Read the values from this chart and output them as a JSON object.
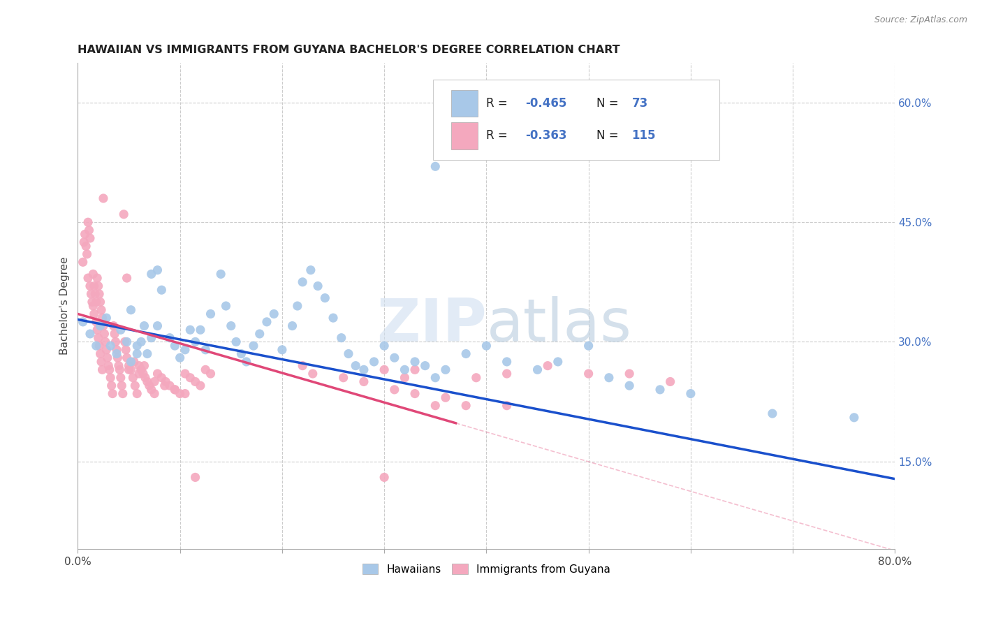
{
  "title": "HAWAIIAN VS IMMIGRANTS FROM GUYANA BACHELOR'S DEGREE CORRELATION CHART",
  "source": "Source: ZipAtlas.com",
  "ylabel_text": "Bachelor's Degree",
  "xmin": 0.0,
  "xmax": 0.8,
  "ymin": 0.04,
  "ymax": 0.65,
  "xticks": [
    0.0,
    0.1,
    0.2,
    0.3,
    0.4,
    0.5,
    0.6,
    0.7,
    0.8
  ],
  "xticklabels": [
    "0.0%",
    "",
    "",
    "",
    "",
    "",
    "",
    "",
    "80.0%"
  ],
  "yticks_right": [
    0.15,
    0.3,
    0.45,
    0.6
  ],
  "ytick_labels_right": [
    "15.0%",
    "30.0%",
    "45.0%",
    "60.0%"
  ],
  "hawaiian_color": "#a8c8e8",
  "guyana_color": "#f4a8be",
  "hawaiian_line_color": "#1a50cc",
  "guyana_line_color": "#e04878",
  "watermark_zip": "ZIP",
  "watermark_atlas": "atlas",
  "hawaiian_scatter": [
    [
      0.005,
      0.325
    ],
    [
      0.012,
      0.31
    ],
    [
      0.018,
      0.295
    ],
    [
      0.022,
      0.32
    ],
    [
      0.028,
      0.33
    ],
    [
      0.032,
      0.295
    ],
    [
      0.038,
      0.285
    ],
    [
      0.042,
      0.315
    ],
    [
      0.048,
      0.3
    ],
    [
      0.052,
      0.34
    ],
    [
      0.058,
      0.295
    ],
    [
      0.062,
      0.3
    ],
    [
      0.068,
      0.285
    ],
    [
      0.072,
      0.305
    ],
    [
      0.078,
      0.32
    ],
    [
      0.052,
      0.275
    ],
    [
      0.058,
      0.285
    ],
    [
      0.065,
      0.32
    ],
    [
      0.072,
      0.385
    ],
    [
      0.078,
      0.39
    ],
    [
      0.082,
      0.365
    ],
    [
      0.09,
      0.305
    ],
    [
      0.095,
      0.295
    ],
    [
      0.1,
      0.28
    ],
    [
      0.105,
      0.29
    ],
    [
      0.11,
      0.315
    ],
    [
      0.115,
      0.3
    ],
    [
      0.12,
      0.315
    ],
    [
      0.125,
      0.29
    ],
    [
      0.13,
      0.335
    ],
    [
      0.14,
      0.385
    ],
    [
      0.145,
      0.345
    ],
    [
      0.15,
      0.32
    ],
    [
      0.155,
      0.3
    ],
    [
      0.16,
      0.285
    ],
    [
      0.165,
      0.275
    ],
    [
      0.172,
      0.295
    ],
    [
      0.178,
      0.31
    ],
    [
      0.185,
      0.325
    ],
    [
      0.192,
      0.335
    ],
    [
      0.2,
      0.29
    ],
    [
      0.21,
      0.32
    ],
    [
      0.215,
      0.345
    ],
    [
      0.22,
      0.375
    ],
    [
      0.228,
      0.39
    ],
    [
      0.235,
      0.37
    ],
    [
      0.242,
      0.355
    ],
    [
      0.25,
      0.33
    ],
    [
      0.258,
      0.305
    ],
    [
      0.265,
      0.285
    ],
    [
      0.272,
      0.27
    ],
    [
      0.28,
      0.265
    ],
    [
      0.29,
      0.275
    ],
    [
      0.3,
      0.295
    ],
    [
      0.31,
      0.28
    ],
    [
      0.32,
      0.265
    ],
    [
      0.33,
      0.275
    ],
    [
      0.34,
      0.27
    ],
    [
      0.35,
      0.255
    ],
    [
      0.36,
      0.265
    ],
    [
      0.38,
      0.285
    ],
    [
      0.4,
      0.295
    ],
    [
      0.42,
      0.275
    ],
    [
      0.45,
      0.265
    ],
    [
      0.47,
      0.275
    ],
    [
      0.5,
      0.295
    ],
    [
      0.52,
      0.255
    ],
    [
      0.54,
      0.245
    ],
    [
      0.57,
      0.24
    ],
    [
      0.6,
      0.235
    ],
    [
      0.68,
      0.21
    ],
    [
      0.76,
      0.205
    ],
    [
      0.35,
      0.52
    ]
  ],
  "guyana_scatter": [
    [
      0.005,
      0.4
    ],
    [
      0.006,
      0.425
    ],
    [
      0.007,
      0.435
    ],
    [
      0.008,
      0.42
    ],
    [
      0.009,
      0.41
    ],
    [
      0.01,
      0.38
    ],
    [
      0.01,
      0.45
    ],
    [
      0.011,
      0.44
    ],
    [
      0.012,
      0.43
    ],
    [
      0.012,
      0.37
    ],
    [
      0.013,
      0.36
    ],
    [
      0.014,
      0.35
    ],
    [
      0.015,
      0.385
    ],
    [
      0.015,
      0.345
    ],
    [
      0.016,
      0.37
    ],
    [
      0.016,
      0.335
    ],
    [
      0.017,
      0.36
    ],
    [
      0.018,
      0.35
    ],
    [
      0.018,
      0.325
    ],
    [
      0.019,
      0.38
    ],
    [
      0.019,
      0.315
    ],
    [
      0.02,
      0.37
    ],
    [
      0.02,
      0.305
    ],
    [
      0.021,
      0.36
    ],
    [
      0.021,
      0.295
    ],
    [
      0.022,
      0.35
    ],
    [
      0.022,
      0.285
    ],
    [
      0.023,
      0.34
    ],
    [
      0.023,
      0.275
    ],
    [
      0.024,
      0.33
    ],
    [
      0.024,
      0.265
    ],
    [
      0.025,
      0.48
    ],
    [
      0.025,
      0.32
    ],
    [
      0.026,
      0.31
    ],
    [
      0.027,
      0.3
    ],
    [
      0.028,
      0.29
    ],
    [
      0.029,
      0.28
    ],
    [
      0.03,
      0.27
    ],
    [
      0.031,
      0.265
    ],
    [
      0.032,
      0.255
    ],
    [
      0.033,
      0.245
    ],
    [
      0.034,
      0.235
    ],
    [
      0.035,
      0.32
    ],
    [
      0.036,
      0.31
    ],
    [
      0.037,
      0.3
    ],
    [
      0.038,
      0.29
    ],
    [
      0.039,
      0.28
    ],
    [
      0.04,
      0.27
    ],
    [
      0.041,
      0.265
    ],
    [
      0.042,
      0.255
    ],
    [
      0.043,
      0.245
    ],
    [
      0.044,
      0.235
    ],
    [
      0.045,
      0.46
    ],
    [
      0.046,
      0.3
    ],
    [
      0.047,
      0.29
    ],
    [
      0.048,
      0.28
    ],
    [
      0.05,
      0.27
    ],
    [
      0.052,
      0.265
    ],
    [
      0.054,
      0.255
    ],
    [
      0.056,
      0.245
    ],
    [
      0.058,
      0.235
    ],
    [
      0.06,
      0.27
    ],
    [
      0.062,
      0.265
    ],
    [
      0.064,
      0.26
    ],
    [
      0.066,
      0.255
    ],
    [
      0.068,
      0.25
    ],
    [
      0.07,
      0.245
    ],
    [
      0.072,
      0.24
    ],
    [
      0.075,
      0.235
    ],
    [
      0.078,
      0.26
    ],
    [
      0.082,
      0.255
    ],
    [
      0.086,
      0.25
    ],
    [
      0.09,
      0.245
    ],
    [
      0.095,
      0.24
    ],
    [
      0.1,
      0.235
    ],
    [
      0.105,
      0.26
    ],
    [
      0.11,
      0.255
    ],
    [
      0.115,
      0.25
    ],
    [
      0.12,
      0.245
    ],
    [
      0.125,
      0.265
    ],
    [
      0.13,
      0.26
    ],
    [
      0.055,
      0.275
    ],
    [
      0.065,
      0.27
    ],
    [
      0.075,
      0.25
    ],
    [
      0.085,
      0.245
    ],
    [
      0.095,
      0.24
    ],
    [
      0.105,
      0.235
    ],
    [
      0.3,
      0.265
    ],
    [
      0.32,
      0.255
    ],
    [
      0.33,
      0.265
    ],
    [
      0.35,
      0.22
    ],
    [
      0.38,
      0.22
    ],
    [
      0.42,
      0.22
    ],
    [
      0.048,
      0.38
    ],
    [
      0.05,
      0.265
    ],
    [
      0.06,
      0.26
    ],
    [
      0.115,
      0.13
    ],
    [
      0.22,
      0.27
    ],
    [
      0.3,
      0.13
    ],
    [
      0.23,
      0.26
    ],
    [
      0.26,
      0.255
    ],
    [
      0.28,
      0.25
    ],
    [
      0.31,
      0.24
    ],
    [
      0.33,
      0.235
    ],
    [
      0.36,
      0.23
    ],
    [
      0.39,
      0.255
    ],
    [
      0.42,
      0.26
    ],
    [
      0.46,
      0.27
    ],
    [
      0.5,
      0.26
    ],
    [
      0.54,
      0.26
    ],
    [
      0.58,
      0.25
    ]
  ],
  "hawaiian_trendline": [
    [
      0.0,
      0.328
    ],
    [
      0.8,
      0.128
    ]
  ],
  "guyana_trendline": [
    [
      0.0,
      0.335
    ],
    [
      0.37,
      0.198
    ]
  ],
  "guyana_trendline_extended_dashed": [
    [
      0.37,
      0.198
    ],
    [
      0.8,
      0.038
    ]
  ]
}
